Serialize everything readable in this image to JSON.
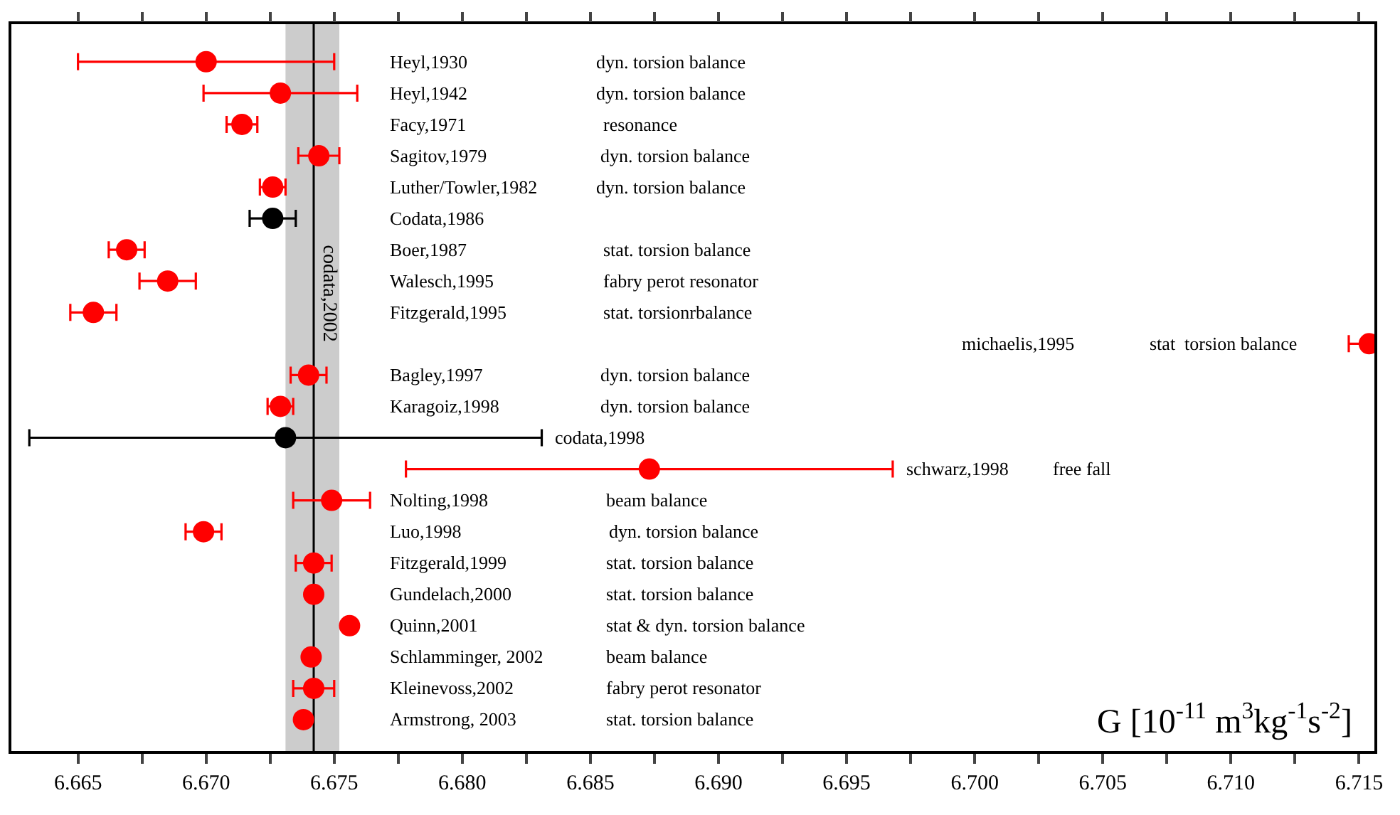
{
  "chart_data": {
    "type": "scatter",
    "orientation": "horizontal",
    "xlabel": "G [10$^{-11}$ m$^{3}$kg$^{-1}$s$^{-2}$]",
    "categories": [
      "Heyl,1930",
      "Heyl,1942",
      "Facy,1971",
      "Sagitov,1979",
      "Luther/Towler,1982",
      "Codata,1986",
      "Boer,1987",
      "Walesch,1995",
      "Fitzgerald,1995",
      "michaelis,1995",
      "Bagley,1997",
      "Karagoiz,1998",
      "codata,1998",
      "schwarz,1998",
      "Nolting,1998",
      "Luo,1998",
      "Fitzgerald,1999",
      "Gundelach,2000",
      "Quinn,2001",
      "Schlamminger, 2002",
      "Kleinevoss,2002",
      "Armstrong, 2003"
    ],
    "series": [
      {
        "color": "#ff0000",
        "values": [
          6.67,
          6.6729,
          6.6714,
          6.6744,
          6.6726,
          null,
          6.6669,
          6.6685,
          6.6656,
          6.7154,
          6.674,
          6.6729,
          null,
          6.6873,
          6.6749,
          6.6699,
          6.6742,
          6.6742,
          6.6756,
          6.6741,
          6.6742,
          6.6738
        ],
        "errors": [
          0.005,
          0.003,
          0.0006,
          0.0008,
          0.0005,
          null,
          0.0007,
          0.0011,
          0.0009,
          [
            6.7146,
            6.7156
          ],
          0.0007,
          0.0005,
          null,
          0.0095,
          0.0015,
          0.0007,
          0.0007,
          null,
          0.0001,
          null,
          0.0008,
          0.0001
        ]
      },
      {
        "color": "#000000",
        "values": [
          null,
          null,
          null,
          null,
          null,
          6.6726,
          null,
          null,
          null,
          null,
          null,
          null,
          6.6731,
          null,
          null,
          null,
          null,
          null,
          null,
          null,
          null,
          null
        ],
        "errors": [
          null,
          null,
          null,
          null,
          null,
          0.0009,
          null,
          null,
          null,
          null,
          null,
          null,
          0.01,
          null,
          null,
          null,
          null,
          null,
          null,
          null,
          null,
          null
        ]
      }
    ],
    "xlim": [
      6.6624,
      6.7156
    ],
    "xticks": [
      6.665,
      {
        "value": 6.6675,
        "label": null
      },
      {
        "value": 6.67,
        "label": "6.670"
      },
      {
        "value": 6.6725,
        "label": null
      },
      6.675,
      {
        "value": 6.6775,
        "label": null
      },
      {
        "value": 6.68,
        "label": "6.680"
      },
      {
        "value": 6.6825,
        "label": null
      },
      6.685,
      {
        "value": 6.6875,
        "label": null
      },
      {
        "value": 6.69,
        "label": "6.690"
      },
      {
        "value": 6.6925,
        "label": null
      },
      6.695,
      {
        "value": 6.6975,
        "label": null
      },
      {
        "value": 6.7,
        "label": "6.700"
      },
      {
        "value": 6.7025,
        "label": null
      },
      6.705,
      {
        "value": 6.7075,
        "label": null
      },
      {
        "value": 6.71,
        "label": "6.710"
      },
      {
        "value": 6.7125,
        "label": null
      },
      6.715
    ],
    "tick_labels": "x",
    "bands": [
      {
        "axis": "x",
        "from": 6.6731,
        "to": 6.6752,
        "color": "#cccccc"
      }
    ],
    "ref_lines": [
      {
        "axis": "x",
        "value": 6.6742,
        "label": "codata,2002",
        "color": "#000000"
      }
    ],
    "annotations": [
      "dyn. torsion balance",
      "dyn. torsion balance",
      "resonance",
      "dyn. torsion balance",
      "dyn. torsion balance",
      "stat. torsion balance",
      "fabry perot resonator",
      "stat. torsionrbalance",
      "stat  torsion balance",
      "dyn. torsion balance",
      "dyn. torsion balance",
      "free fall",
      "beam balance",
      "dyn. torsion balance",
      "stat. torsion balance",
      "stat. torsion balance",
      "stat & dyn. torsion balance",
      "beam balance",
      "fabry perot resonator",
      "stat. torsion balance"
    ],
    "marker": "circle",
    "grid": false,
    "legend": false
  }
}
